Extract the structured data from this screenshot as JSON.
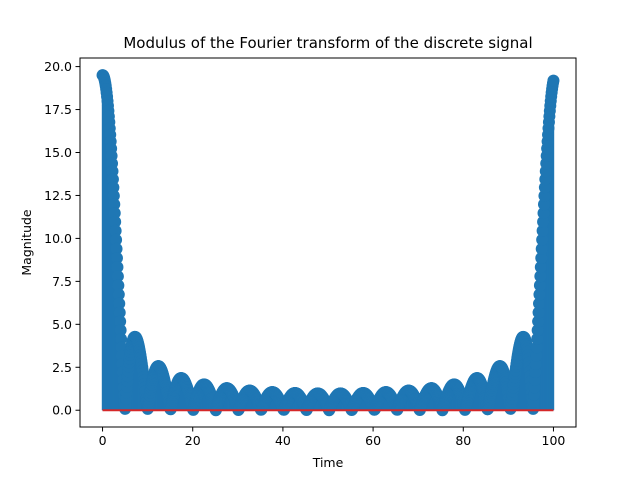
{
  "chart_data": {
    "type": "stem",
    "title": "Modulus of the Fourier transform of the discrete signal",
    "xlabel": "Time",
    "ylabel": "Magnitude",
    "xlim": [
      -5,
      105
    ],
    "ylim": [
      -0.976,
      20.5
    ],
    "xticks": [
      "0",
      "20",
      "40",
      "60",
      "80",
      "100"
    ],
    "yticks": [
      "0.0",
      "2.5",
      "5.0",
      "7.5",
      "10.0",
      "12.5",
      "15.0",
      "17.5",
      "20.0"
    ],
    "grid": false,
    "legend": "none",
    "series": [
      {
        "x_range": [
          0,
          100
        ],
        "sample_count": 1000,
        "marker": "circle",
        "color": "#1f77b4",
        "baseline_color": "#d62728",
        "baseline_y": 0,
        "envelope": "abs(sin(pi*20*x/100.5)/sin(pi*x/100.5))",
        "peak_values": {
          "x0": 19.5,
          "x100": 19.5,
          "side_lobe_1": 4.4,
          "side_lobe_2": 2.6,
          "side_lobe_min": 0.8
        }
      }
    ]
  }
}
